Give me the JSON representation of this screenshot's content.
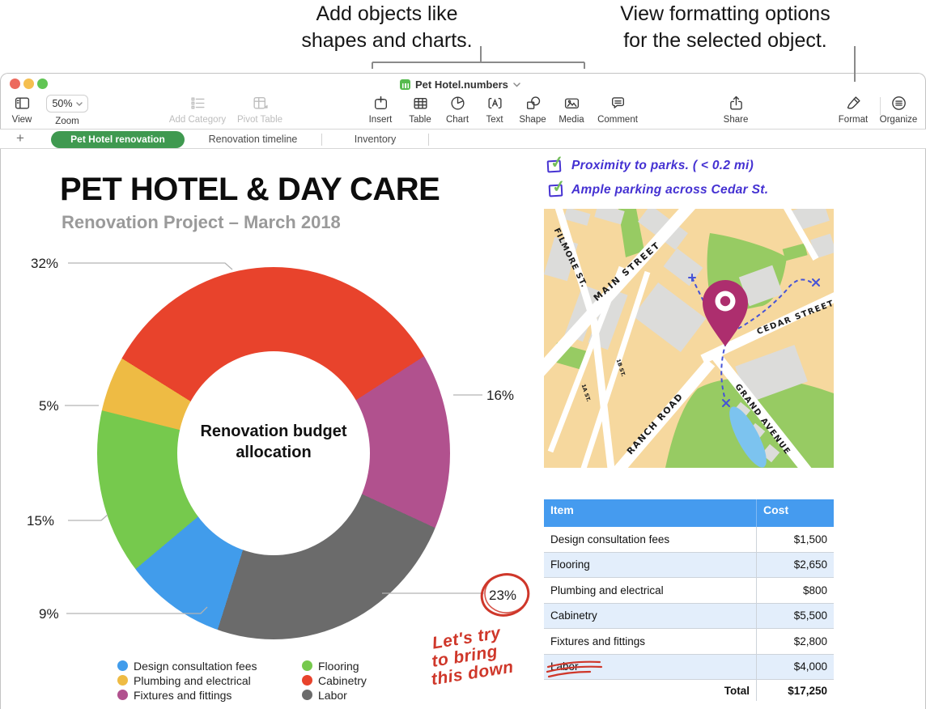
{
  "callouts": {
    "left_line1": "Add objects like",
    "left_line2": "shapes and charts.",
    "right_line1": "View formatting options",
    "right_line2": "for the selected object."
  },
  "window": {
    "title": "Pet Hotel.numbers",
    "toolbar": {
      "view": "View",
      "zoom": "Zoom",
      "zoom_value": "50%",
      "add_category": "Add Category",
      "pivot_table": "Pivot Table",
      "insert": "Insert",
      "table": "Table",
      "chart": "Chart",
      "text": "Text",
      "shape": "Shape",
      "media": "Media",
      "comment": "Comment",
      "share": "Share",
      "format": "Format",
      "organize": "Organize"
    },
    "tabs": [
      {
        "label": "Pet Hotel renovation",
        "active": true
      },
      {
        "label": "Renovation timeline",
        "active": false
      },
      {
        "label": "Inventory",
        "active": false
      }
    ],
    "add_sheet_label": "+"
  },
  "sheet": {
    "title": "PET HOTEL & DAY CARE",
    "subtitle": "Renovation Project – March 2018"
  },
  "chart_data": {
    "type": "pie",
    "donut": true,
    "title": "Renovation budget allocation",
    "start_angle": -58,
    "slices": [
      {
        "label": "Cabinetry",
        "pct": 32,
        "pct_label": "32%",
        "color": "#E8432C"
      },
      {
        "label": "Fixtures and fittings",
        "pct": 16,
        "pct_label": "16%",
        "color": "#B1518E"
      },
      {
        "label": "Labor",
        "pct": 23,
        "pct_label": "23%",
        "color": "#6B6B6B"
      },
      {
        "label": "Design consultation fees",
        "pct": 9,
        "pct_label": "9%",
        "color": "#419CEB"
      },
      {
        "label": "Flooring",
        "pct": 15,
        "pct_label": "15%",
        "color": "#76C94D"
      },
      {
        "label": "Plumbing and electrical",
        "pct": 5,
        "pct_label": "5%",
        "color": "#EEBB44"
      }
    ],
    "legend": [
      {
        "label": "Design consultation fees",
        "color": "#419CEB"
      },
      {
        "label": "Plumbing and electrical",
        "color": "#EEBB44"
      },
      {
        "label": "Fixtures and fittings",
        "color": "#B1518E"
      },
      {
        "label": "Flooring",
        "color": "#76C94D"
      },
      {
        "label": "Cabinetry",
        "color": "#E8432C"
      },
      {
        "label": "Labor",
        "color": "#6B6B6B"
      }
    ],
    "legend_position": "bottom"
  },
  "annotations": {
    "checklist": [
      "Proximity to parks. ( < 0.2 mi)",
      "Ample parking across Cedar St."
    ],
    "red_note_line1": "Let's try",
    "red_note_line2": "to bring",
    "red_note_line3": "this down"
  },
  "map": {
    "streets": [
      "FILMORE ST.",
      "MAIN STREET",
      "CEDAR STREET",
      "GRAND AVENUE",
      "RANCH ROAD",
      "1B ST.",
      "1A ST."
    ]
  },
  "cost_table": {
    "headers": [
      "Item",
      "Cost"
    ],
    "rows": [
      {
        "item": "Design consultation fees",
        "cost": "$1,500"
      },
      {
        "item": "Flooring",
        "cost": "$2,650"
      },
      {
        "item": "Plumbing and electrical",
        "cost": "$800"
      },
      {
        "item": "Cabinetry",
        "cost": "$5,500"
      },
      {
        "item": "Fixtures and fittings",
        "cost": "$2,800"
      },
      {
        "item": "Labor",
        "cost": "$4,000"
      }
    ],
    "total_label": "Total",
    "total_value": "$17,250"
  },
  "colors": {
    "tab_active_green": "#3F9950",
    "table_header_blue": "#459BEF",
    "table_alt_row": "#E3EEFB",
    "handwriting_blue": "#4431D2",
    "check_green": "#74BE5B",
    "annotation_red": "#CF372A",
    "map_background": "#F6D89E",
    "map_park_green": "#97CB63",
    "map_block_gray": "#DCDCDA",
    "map_pond_blue": "#7CC3EF",
    "map_route_blue": "#4653D6",
    "map_pin_magenta": "#AD2E6E",
    "callout_line_gray": "#8A8A8A"
  }
}
